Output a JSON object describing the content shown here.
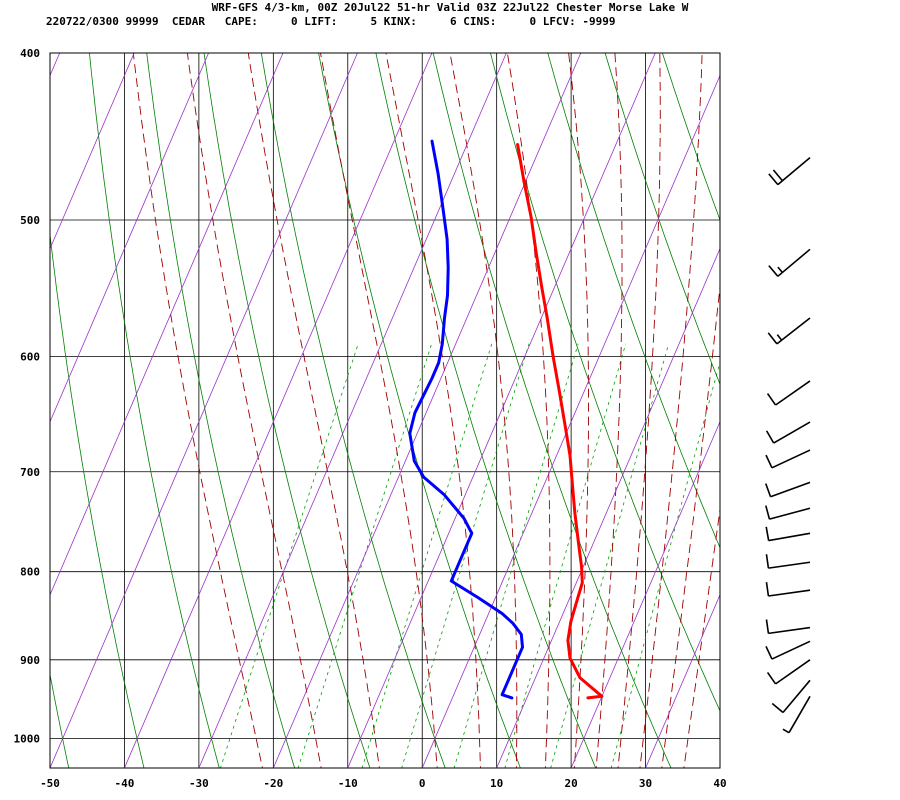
{
  "header": {
    "line1": "WRF-GFS 4/3-km, 00Z 20Jul22 51-hr Valid 03Z 22Jul22 Chester Morse Lake W",
    "line2": "220722/0300 99999  CEDAR   CAPE:     0 LIFT:     5 KINX:     6 CINS:     0 LFCV: -9999"
  },
  "chart_data": {
    "type": "skew-t",
    "xlim": [
      -50,
      40
    ],
    "ylim": [
      1040,
      400
    ],
    "y_scale": "log",
    "x_ticks": [
      "-50",
      "-40",
      "-30",
      "-20",
      "-10",
      "0",
      "10",
      "20",
      "30",
      "40"
    ],
    "y_ticks": [
      "400",
      "500",
      "600",
      "700",
      "800",
      "900",
      "1000"
    ],
    "grid": true,
    "series": [
      {
        "color": "#ff0000",
        "points": [
          [
            20,
            945
          ],
          [
            18.2,
            947
          ],
          [
            20,
            945
          ],
          [
            16,
            922
          ],
          [
            13.5,
            898
          ],
          [
            12.2,
            877
          ],
          [
            11.5,
            855
          ],
          [
            11.1,
            830
          ],
          [
            10.8,
            812
          ],
          [
            9.8,
            795
          ],
          [
            8,
            770
          ],
          [
            5.8,
            740
          ],
          [
            3.8,
            712
          ],
          [
            1.8,
            685
          ],
          [
            -0.6,
            658
          ],
          [
            -3.4,
            628
          ],
          [
            -6.2,
            600
          ],
          [
            -9.2,
            570
          ],
          [
            -11.6,
            548
          ],
          [
            -14.5,
            522
          ],
          [
            -17.2,
            498
          ],
          [
            -20.2,
            475
          ],
          [
            -23.2,
            452
          ]
        ]
      },
      {
        "color": "#0000ff",
        "points": [
          [
            8,
            947
          ],
          [
            6.5,
            943
          ],
          [
            6.5,
            925
          ],
          [
            6.5,
            885
          ],
          [
            5.6,
            870
          ],
          [
            3.8,
            857
          ],
          [
            1.8,
            846
          ],
          [
            -2.4,
            828
          ],
          [
            -6.9,
            810
          ],
          [
            -6.9,
            792
          ],
          [
            -6.9,
            760
          ],
          [
            -8.8,
            745
          ],
          [
            -12.8,
            722
          ],
          [
            -16.6,
            705
          ],
          [
            -18.8,
            690
          ],
          [
            -21,
            665
          ],
          [
            -21.5,
            647
          ],
          [
            -21.2,
            618
          ],
          [
            -21.2,
            605
          ],
          [
            -21.8,
            590
          ],
          [
            -23,
            570
          ],
          [
            -23.9,
            553
          ],
          [
            -25.4,
            533
          ],
          [
            -27.2,
            513
          ],
          [
            -29.8,
            490
          ],
          [
            -32.2,
            470
          ],
          [
            -34.9,
            450
          ]
        ]
      }
    ],
    "isotherms": [
      -120,
      -110,
      -100,
      -90,
      -80,
      -70,
      -60,
      -50,
      -40,
      -30,
      -20,
      -10,
      0,
      10,
      20,
      30,
      40
    ],
    "dry_adiabats": [
      -100,
      -90,
      -80,
      -70,
      -60,
      -50,
      -40,
      -30,
      -20,
      -10,
      0,
      10,
      20,
      30,
      40,
      50,
      60,
      70,
      80,
      90,
      100,
      110,
      120,
      130
    ],
    "moist_adiabats": [
      -24,
      -16,
      -8,
      0,
      6,
      11,
      15,
      19,
      22,
      25,
      28,
      31,
      34
    ],
    "mixing_ratios": [
      0.4,
      1,
      2,
      3,
      5,
      8,
      12,
      20
    ],
    "wind_barbs": [
      {
        "p": 460,
        "dir": 230,
        "spd": 20
      },
      {
        "p": 520,
        "dir": 230,
        "spd": 15
      },
      {
        "p": 570,
        "dir": 232,
        "spd": 15
      },
      {
        "p": 620,
        "dir": 235,
        "spd": 10
      },
      {
        "p": 655,
        "dir": 240,
        "spd": 10
      },
      {
        "p": 680,
        "dir": 245,
        "spd": 10
      },
      {
        "p": 710,
        "dir": 250,
        "spd": 10
      },
      {
        "p": 735,
        "dir": 255,
        "spd": 10
      },
      {
        "p": 760,
        "dir": 260,
        "spd": 10
      },
      {
        "p": 790,
        "dir": 262,
        "spd": 10
      },
      {
        "p": 820,
        "dir": 262,
        "spd": 10
      },
      {
        "p": 862,
        "dir": 262,
        "spd": 10
      },
      {
        "p": 878,
        "dir": 245,
        "spd": 10
      },
      {
        "p": 900,
        "dir": 235,
        "spd": 10
      },
      {
        "p": 925,
        "dir": 220,
        "spd": 10
      },
      {
        "p": 945,
        "dir": 210,
        "spd": 5
      }
    ]
  }
}
